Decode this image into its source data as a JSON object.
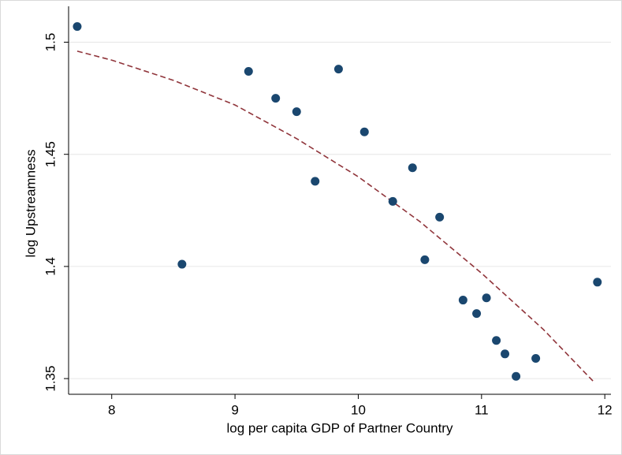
{
  "chart_data": {
    "type": "scatter",
    "xlabel": "log per capita GDP of Partner Country",
    "ylabel": "log Upstreamness",
    "xlim": [
      7.65,
      12.05
    ],
    "xticks": [
      8,
      9,
      10,
      11,
      12
    ],
    "ylim": [
      1.343,
      1.516
    ],
    "yticks": [
      1.35,
      1.4,
      1.45,
      1.5
    ],
    "grid": true,
    "points": {
      "color": "#1a476f",
      "x": [
        7.72,
        8.57,
        9.11,
        9.33,
        9.5,
        9.65,
        9.84,
        10.05,
        10.28,
        10.44,
        10.54,
        10.66,
        10.85,
        10.96,
        11.04,
        11.12,
        11.19,
        11.28,
        11.44,
        11.94
      ],
      "y": [
        1.507,
        1.401,
        1.487,
        1.475,
        1.469,
        1.438,
        1.488,
        1.46,
        1.429,
        1.444,
        1.403,
        1.422,
        1.385,
        1.379,
        1.386,
        1.367,
        1.361,
        1.351,
        1.359,
        1.393
      ]
    },
    "fit": {
      "color": "#90353b",
      "dashed": true,
      "x": [
        7.72,
        8,
        8.5,
        9,
        9.5,
        10,
        10.5,
        11,
        11.5,
        11.92
      ],
      "y": [
        1.496,
        1.492,
        1.483,
        1.472,
        1.457,
        1.44,
        1.42,
        1.397,
        1.372,
        1.348
      ]
    }
  }
}
